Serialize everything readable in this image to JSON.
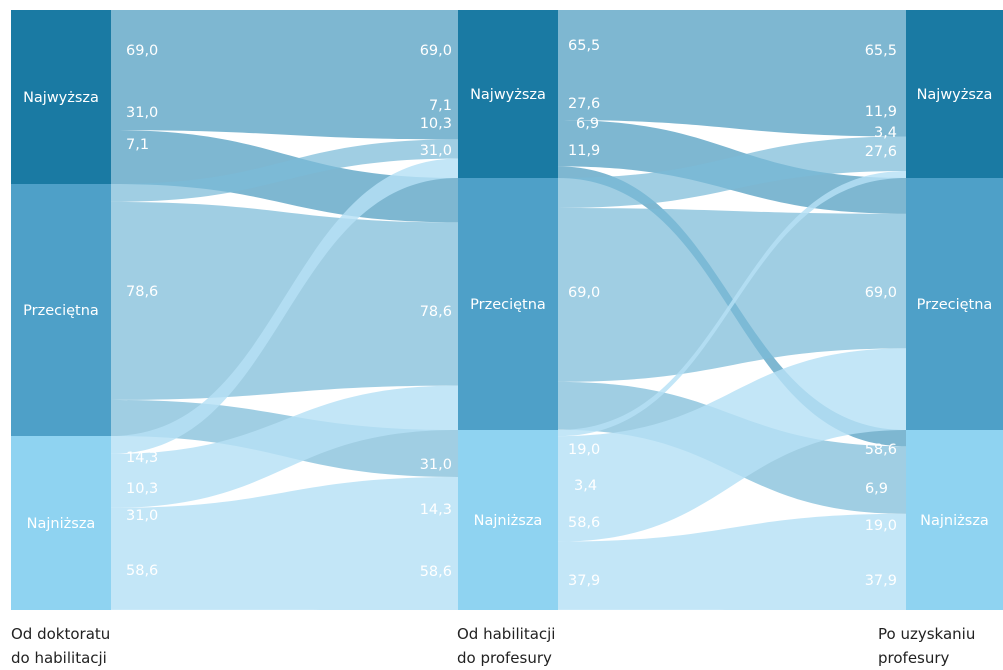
{
  "chart_data": {
    "type": "sankey",
    "stages": [
      {
        "title_line1": "Od doktoratu",
        "title_line2": "do habilitacji"
      },
      {
        "title_line1": "Od habilitacji",
        "title_line2": "do profesury"
      },
      {
        "title_line1": "Po uzyskaniu",
        "title_line2": "profesury"
      }
    ],
    "levels": [
      "Najwyższa",
      "Przeciętna",
      "Najniższa"
    ],
    "level_colors": [
      "#1a7aa3",
      "#4ea0c8",
      "#8fd3f1"
    ],
    "stage_totals": [
      [
        29,
        42,
        29
      ],
      [
        28,
        42,
        30
      ],
      [
        28,
        42,
        30
      ]
    ],
    "flows": [
      {
        "from_stage": 0,
        "to_stage": 1,
        "values": [
          [
            69.0,
            31.0,
            0
          ],
          [
            7.1,
            78.6,
            14.3
          ],
          [
            10.3,
            31.0,
            58.6
          ]
        ]
      },
      {
        "from_stage": 1,
        "to_stage": 2,
        "values": [
          [
            65.5,
            27.6,
            6.9
          ],
          [
            11.9,
            69.0,
            19.0
          ],
          [
            3.4,
            58.6,
            37.9
          ]
        ]
      }
    ],
    "value_labels": {
      "s0_out": [
        [
          "69,0",
          "31,0",
          ""
        ],
        [
          "7,1",
          "78,6",
          "14,3"
        ],
        [
          "10,3",
          "31,0",
          "58,6"
        ]
      ],
      "s1_in": [
        [
          "69,0",
          "31,0",
          ""
        ],
        [
          "7,1",
          "78,6",
          "14,3"
        ],
        [
          "10,3",
          "31,0",
          "58,6"
        ]
      ],
      "s1_out": [
        [
          "65,5",
          "27,6",
          "6,9"
        ],
        [
          "11,9",
          "69,0",
          "19,0"
        ],
        [
          "3,4",
          "58,6",
          "37,9"
        ]
      ],
      "s2_in": [
        [
          "65,5",
          "27,6",
          "6,9"
        ],
        [
          "11,9",
          "69,0",
          "19,0"
        ],
        [
          "3,4",
          "58,6",
          "37,9"
        ]
      ]
    },
    "units": "%"
  }
}
